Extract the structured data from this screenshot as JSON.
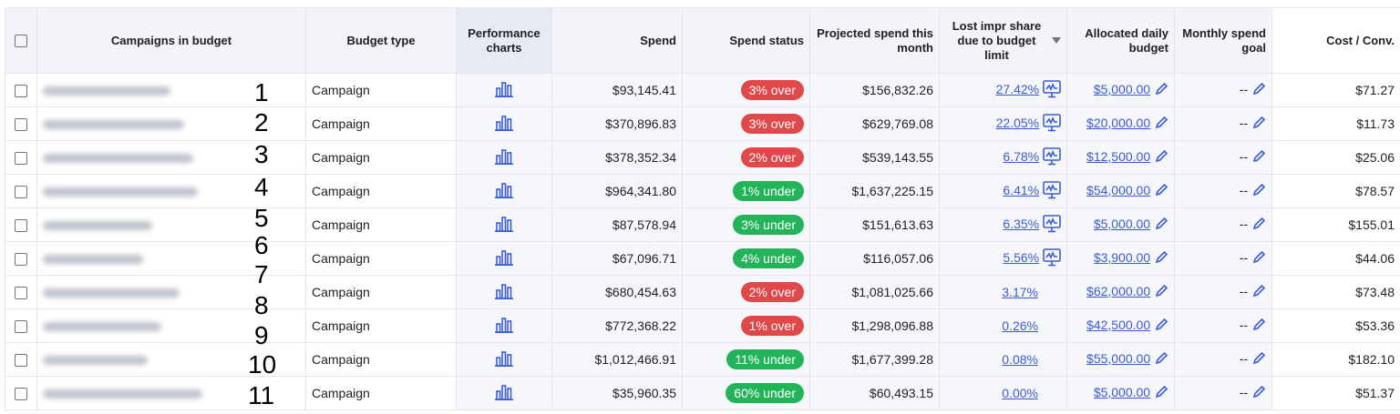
{
  "headers": {
    "campaigns": "Campaigns in budget",
    "budget_type": "Budget type",
    "performance": "Performance charts",
    "spend": "Spend",
    "spend_status": "Spend status",
    "projected": "Projected spend this month",
    "lost": "Lost impr share due to budget limit",
    "allocated": "Allocated daily budget",
    "monthly_goal": "Monthly spend goal",
    "cost_conv": "Cost / Conv."
  },
  "sort": {
    "column": "lost",
    "direction": "descending"
  },
  "colors": {
    "over": "#e0484a",
    "under": "#23b45a",
    "link": "#3b5bd6"
  },
  "rows": [
    {
      "n": "1",
      "type": "Campaign",
      "spend": "$93,145.41",
      "status": "3% over",
      "s": "over",
      "projected": "$156,832.26",
      "lost": "27.42%",
      "chart": true,
      "alloc": "$5,000.00",
      "goal": "--",
      "cost": "$71.27"
    },
    {
      "n": "2",
      "type": "Campaign",
      "spend": "$370,896.83",
      "status": "3% over",
      "s": "over",
      "projected": "$629,769.08",
      "lost": "22.05%",
      "chart": true,
      "alloc": "$20,000.00",
      "goal": "--",
      "cost": "$11.73"
    },
    {
      "n": "3",
      "type": "Campaign",
      "spend": "$378,352.34",
      "status": "2% over",
      "s": "over",
      "projected": "$539,143.55",
      "lost": "6.78%",
      "chart": true,
      "alloc": "$12,500.00",
      "goal": "--",
      "cost": "$25.06"
    },
    {
      "n": "4",
      "type": "Campaign",
      "spend": "$964,341.80",
      "status": "1% under",
      "s": "under",
      "projected": "$1,637,225.15",
      "lost": "6.41%",
      "chart": true,
      "alloc": "$54,000.00",
      "goal": "--",
      "cost": "$78.57"
    },
    {
      "n": "5",
      "type": "Campaign",
      "spend": "$87,578.94",
      "status": "3% under",
      "s": "under",
      "projected": "$151,613.63",
      "lost": "6.35%",
      "chart": true,
      "alloc": "$5,000.00",
      "goal": "--",
      "cost": "$155.01"
    },
    {
      "n": "6",
      "type": "Campaign",
      "spend": "$67,096.71",
      "status": "4% under",
      "s": "under",
      "projected": "$116,057.06",
      "lost": "5.56%",
      "chart": true,
      "alloc": "$3,900.00",
      "goal": "--",
      "cost": "$44.06"
    },
    {
      "n": "7",
      "type": "Campaign",
      "spend": "$680,454.63",
      "status": "2% over",
      "s": "over",
      "projected": "$1,081,025.66",
      "lost": "3.17%",
      "chart": false,
      "alloc": "$62,000.00",
      "goal": "--",
      "cost": "$73.48"
    },
    {
      "n": "8",
      "type": "Campaign",
      "spend": "$772,368.22",
      "status": "1% over",
      "s": "over",
      "projected": "$1,298,096.88",
      "lost": "0.26%",
      "chart": false,
      "alloc": "$42,500.00",
      "goal": "--",
      "cost": "$53.36"
    },
    {
      "n": "9",
      "type": "Campaign",
      "spend": "$1,012,466.91",
      "status": "11% under",
      "s": "under",
      "projected": "$1,677,399.28",
      "lost": "0.08%",
      "chart": false,
      "alloc": "$55,000.00",
      "goal": "--",
      "cost": "$182.10"
    },
    {
      "n": "10",
      "type": "Campaign",
      "spend": "$35,960.35",
      "status": "60% under",
      "s": "under",
      "projected": "$60,493.15",
      "lost": "0.00%",
      "chart": false,
      "alloc": "$5,000.00",
      "goal": "--",
      "cost": "$51.37"
    }
  ],
  "overlay_numbers": [
    "1",
    "2",
    "3",
    "4",
    "5",
    "6",
    "7",
    "8",
    "9",
    "10",
    "11"
  ]
}
